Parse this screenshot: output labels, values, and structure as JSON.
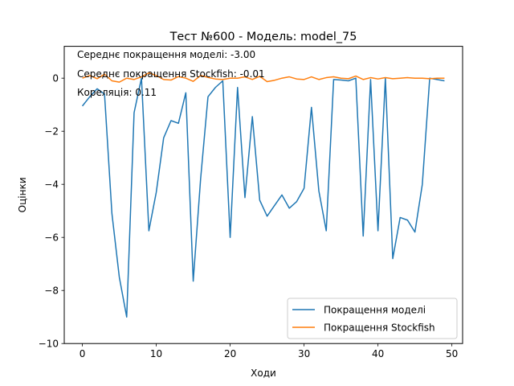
{
  "chart_data": {
    "type": "line",
    "title": "Тест №600 - Модель: model_75",
    "xlabel": "Ходи",
    "ylabel": "Оцінки",
    "xlim": [
      -2.45,
      51.45
    ],
    "ylim": [
      -10,
      1.2
    ],
    "xticks": [
      0,
      10,
      20,
      30,
      40,
      50
    ],
    "yticks": [
      -10,
      -8,
      -6,
      -4,
      -2,
      0
    ],
    "grid": false,
    "legend_position": "bottom-right",
    "annotations": [
      "Середнє покращення моделі: -3.00",
      "Середнє покращення Stockfish: -0.01",
      "Кореляція: 0.11"
    ],
    "x": [
      0,
      1,
      2,
      3,
      4,
      5,
      6,
      7,
      8,
      9,
      10,
      11,
      12,
      13,
      14,
      15,
      16,
      17,
      18,
      19,
      20,
      21,
      22,
      23,
      24,
      25,
      26,
      27,
      28,
      29,
      30,
      31,
      32,
      33,
      34,
      35,
      36,
      37,
      38,
      39,
      40,
      41,
      42,
      43,
      44,
      45,
      46,
      47,
      48,
      49
    ],
    "series": [
      {
        "name": "Покращення моделі",
        "color": "#1f77b4",
        "values": [
          -1.05,
          -0.7,
          -0.4,
          -0.6,
          -5.1,
          -7.5,
          -9.0,
          -1.3,
          0.0,
          -5.75,
          -4.3,
          -2.25,
          -1.6,
          -1.7,
          -0.55,
          -7.65,
          -3.8,
          -0.7,
          -0.35,
          -0.1,
          -6.0,
          -0.35,
          -4.5,
          -1.45,
          -4.6,
          -5.2,
          -4.8,
          -4.4,
          -4.9,
          -4.65,
          -4.15,
          -1.1,
          -4.25,
          -5.75,
          -0.05,
          -0.07,
          -0.1,
          0.0,
          -5.95,
          -0.05,
          -5.75,
          0.0,
          -6.8,
          -5.25,
          -5.35,
          -5.8,
          -4.0,
          0.0,
          -0.05,
          -0.1
        ]
      },
      {
        "name": "Покращення Stockfish",
        "color": "#ff7f0e",
        "values": [
          0.0,
          0.1,
          -0.02,
          0.15,
          -0.1,
          -0.15,
          0.0,
          -0.05,
          0.05,
          0.2,
          0.1,
          -0.05,
          -0.07,
          0.06,
          0.0,
          -0.12,
          0.1,
          0.03,
          -0.03,
          -0.05,
          0.0,
          0.0,
          0.05,
          -0.05,
          0.07,
          -0.13,
          -0.08,
          0.0,
          0.05,
          -0.03,
          -0.05,
          0.05,
          -0.05,
          0.02,
          0.05,
          0.0,
          -0.02,
          0.08,
          -0.05,
          0.02,
          -0.03,
          0.02,
          -0.02,
          0.0,
          0.02,
          0.0,
          0.0,
          -0.02,
          0.0,
          0.0
        ]
      }
    ]
  }
}
